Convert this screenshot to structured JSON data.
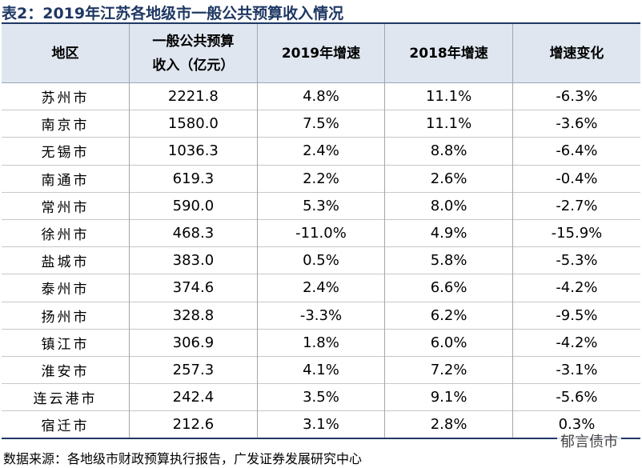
{
  "title": "表2：2019年江苏各地级市一般公共预算收入情况",
  "table": {
    "header": [
      "地区",
      [
        "一般公共预算",
        "收入（亿元）"
      ],
      "2019年增速",
      "2018年增速",
      "增速变化"
    ],
    "rows": [
      [
        "苏州市",
        "2221.8",
        "4.8%",
        "11.1%",
        "-6.3%"
      ],
      [
        "南京市",
        "1580.0",
        "7.5%",
        "11.1%",
        "-3.6%"
      ],
      [
        "无锡市",
        "1036.3",
        "2.4%",
        "8.8%",
        "-6.4%"
      ],
      [
        "南通市",
        "619.3",
        "2.2%",
        "2.6%",
        "-0.4%"
      ],
      [
        "常州市",
        "590.0",
        "5.3%",
        "8.0%",
        "-2.7%"
      ],
      [
        "徐州市",
        "468.3",
        "-11.0%",
        "4.9%",
        "-15.9%"
      ],
      [
        "盐城市",
        "383.0",
        "0.5%",
        "5.8%",
        "-5.3%"
      ],
      [
        "泰州市",
        "374.6",
        "2.4%",
        "6.6%",
        "-4.2%"
      ],
      [
        "扬州市",
        "328.8",
        "-3.3%",
        "6.2%",
        "-9.5%"
      ],
      [
        "镇江市",
        "306.9",
        "1.8%",
        "6.0%",
        "-4.2%"
      ],
      [
        "淮安市",
        "257.3",
        "4.1%",
        "7.2%",
        "-3.1%"
      ],
      [
        "连云港市",
        "242.4",
        "3.5%",
        "9.1%",
        "-5.6%"
      ],
      [
        "宿迁市",
        "212.6",
        "3.1%",
        "2.8%",
        "0.3%"
      ]
    ]
  },
  "source": "数据来源：各地级市财政预算执行报告，广发证券发展研究中心",
  "watermark": "郁言债市"
}
